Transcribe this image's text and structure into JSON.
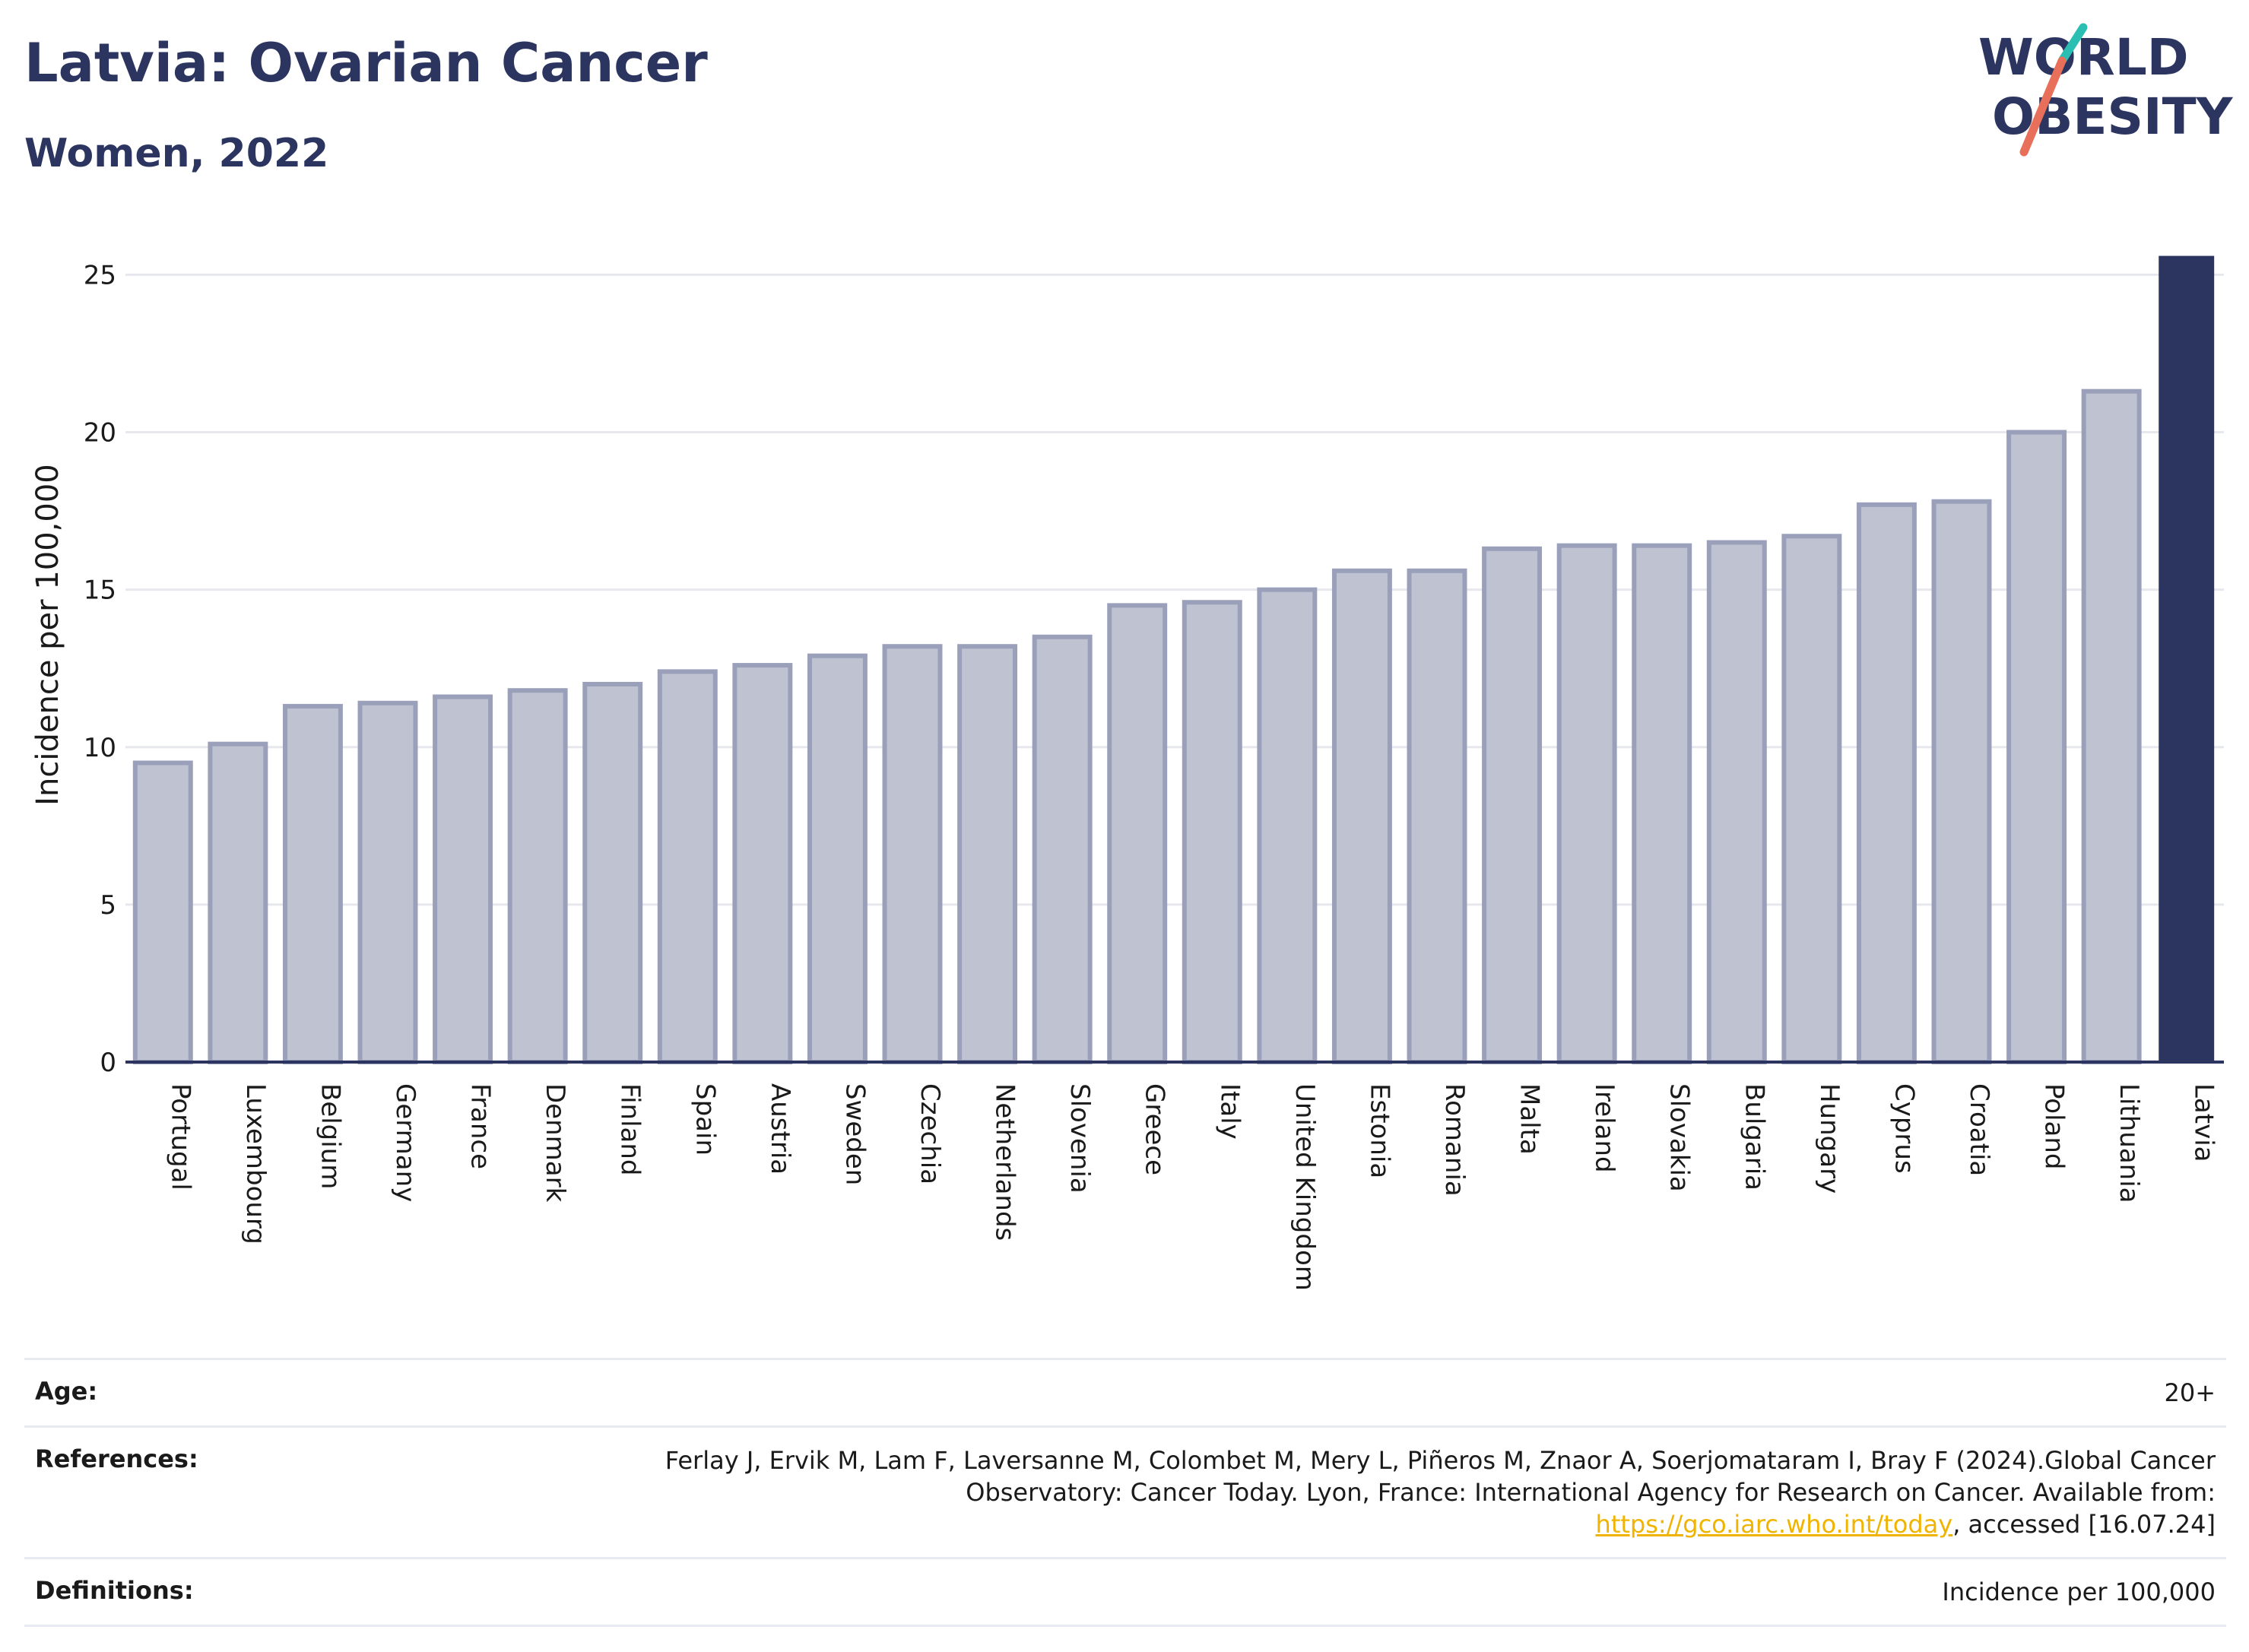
{
  "header": {
    "title": "Latvia: Ovarian Cancer",
    "subtitle": "Women, 2022"
  },
  "logo": {
    "line1": "WORLD",
    "line2": "OBESITY",
    "text_color": "#2b3560",
    "slash_top_color": "#2bbfb3",
    "slash_bottom_color": "#e8705a"
  },
  "chart_data": {
    "type": "bar",
    "ylabel": "Incidence per 100,000",
    "xlabel": "",
    "ylim": [
      0,
      26
    ],
    "yticks": [
      0,
      5,
      10,
      15,
      20,
      25
    ],
    "grid": true,
    "highlight": "Latvia",
    "colors": {
      "bar_fill": "#bfc3d1",
      "bar_stroke": "#9aa0b9",
      "highlight_fill": "#2b3560",
      "grid": "#e6e8ee",
      "axis": "#2b3560"
    },
    "categories": [
      "Portugal",
      "Luxembourg",
      "Belgium",
      "Germany",
      "France",
      "Denmark",
      "Finland",
      "Spain",
      "Austria",
      "Sweden",
      "Czechia",
      "Netherlands",
      "Slovenia",
      "Greece",
      "Italy",
      "United Kingdom",
      "Estonia",
      "Romania",
      "Malta",
      "Ireland",
      "Slovakia",
      "Bulgaria",
      "Hungary",
      "Cyprus",
      "Croatia",
      "Poland",
      "Lithuania",
      "Latvia"
    ],
    "values": [
      9.5,
      10.1,
      11.3,
      11.4,
      11.6,
      11.8,
      12.0,
      12.4,
      12.6,
      12.9,
      13.2,
      13.2,
      13.5,
      14.5,
      14.6,
      15.0,
      15.6,
      15.6,
      16.3,
      16.4,
      16.4,
      16.5,
      16.7,
      17.7,
      17.8,
      20.0,
      21.3,
      25.6
    ]
  },
  "info": {
    "age_label": "Age:",
    "age_value": "20+",
    "references_label": "References:",
    "references_text_1": "Ferlay J, Ervik M, Lam F, Laversanne M, Colombet M, Mery L, Piñeros M, Znaor A, Soerjomataram I, Bray F (2024).Global Cancer Observatory: Cancer Today. Lyon, France: International Agency for Research on Cancer. Available from: ",
    "references_link": "https://gco.iarc.who.int/today",
    "references_text_2": ", accessed [16.07.24]",
    "definitions_label": "Definitions:",
    "definitions_value": "Incidence per 100,000"
  }
}
